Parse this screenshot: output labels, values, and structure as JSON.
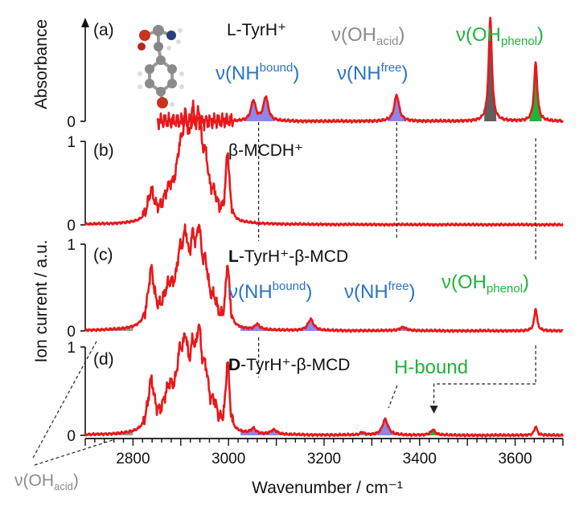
{
  "chart_data": {
    "type": "line",
    "xlabel": "Wavenumber / cm⁻¹",
    "ylabel_top": "Absorbance",
    "ylabel_bottom": "Ion current / a.u.",
    "xlim": [
      2700,
      3700
    ],
    "xticks": [
      2800,
      3000,
      3200,
      3400,
      3600
    ],
    "panels": [
      {
        "id": "a",
        "label": "(a)",
        "title": "L-TyrH⁺",
        "ylim": [
          0,
          1
        ],
        "yticks": [
          "0"
        ],
        "trace_x_range": [
          2850,
          3700
        ],
        "peaks": [
          {
            "x": 3052,
            "height": 0.2,
            "width": 6,
            "fill": "nh"
          },
          {
            "x": 3078,
            "height": 0.24,
            "width": 6,
            "fill": "nh"
          },
          {
            "x": 3352,
            "height": 0.26,
            "width": 6,
            "fill": "nh"
          },
          {
            "x": 3548,
            "height": 1.02,
            "width": 4,
            "fill": "acid"
          },
          {
            "x": 3643,
            "height": 0.58,
            "width": 4,
            "fill": "phenol"
          }
        ],
        "annotations": [
          {
            "base": "ν(NH",
            "sup": "bound",
            "close": ")",
            "color_key": "blue"
          },
          {
            "base": "ν(NH",
            "sup": "free",
            "close": ")",
            "color_key": "blue"
          },
          {
            "base": "ν(OH",
            "sub": "acid",
            "close": ")",
            "color_key": "gray"
          },
          {
            "base": "ν(OH",
            "sub": "phenol",
            "close": ")",
            "color_key": "green"
          }
        ]
      },
      {
        "id": "b",
        "label": "(b)",
        "title": "β-MCDH⁺",
        "ylim": [
          0,
          1
        ],
        "yticks": [
          "0",
          "1"
        ],
        "trace_x_range": [
          2700,
          3700
        ],
        "peaks": [
          {
            "x": 2838,
            "height": 0.33,
            "width": 8
          },
          {
            "x": 2875,
            "height": 0.3,
            "width": 15
          },
          {
            "x": 2898,
            "height": 0.58,
            "width": 10
          },
          {
            "x": 2910,
            "height": 0.82,
            "width": 7
          },
          {
            "x": 2925,
            "height": 0.9,
            "width": 7
          },
          {
            "x": 2938,
            "height": 0.93,
            "width": 7
          },
          {
            "x": 2952,
            "height": 0.55,
            "width": 8
          },
          {
            "x": 2970,
            "height": 0.22,
            "width": 8
          },
          {
            "x": 2998,
            "height": 0.82,
            "width": 4.5
          }
        ]
      },
      {
        "id": "c",
        "label": "(c)",
        "title_bold": "L",
        "title_rest": "-TyrH⁺-β-MCD",
        "ylim": [
          0,
          1
        ],
        "yticks": [
          "0",
          "1"
        ],
        "trace_x_range": [
          2700,
          3700
        ],
        "gray_fill": [
          2745,
          2800
        ],
        "blue_fill": [
          3025,
          3445
        ],
        "peaks": [
          {
            "x": 2838,
            "height": 0.62,
            "width": 8
          },
          {
            "x": 2875,
            "height": 0.4,
            "width": 15
          },
          {
            "x": 2898,
            "height": 0.58,
            "width": 9
          },
          {
            "x": 2910,
            "height": 0.7,
            "width": 7
          },
          {
            "x": 2925,
            "height": 0.68,
            "width": 7
          },
          {
            "x": 2938,
            "height": 0.84,
            "width": 7
          },
          {
            "x": 2952,
            "height": 0.52,
            "width": 8
          },
          {
            "x": 2970,
            "height": 0.22,
            "width": 8
          },
          {
            "x": 2998,
            "height": 0.72,
            "width": 4.5
          },
          {
            "x": 3060,
            "height": 0.06,
            "width": 6
          },
          {
            "x": 3172,
            "height": 0.13,
            "width": 7
          },
          {
            "x": 3365,
            "height": 0.04,
            "width": 9
          },
          {
            "x": 3643,
            "height": 0.26,
            "width": 3.5
          }
        ],
        "annotations": [
          {
            "base": "ν(NH",
            "sup": "bound",
            "close": ")",
            "color_key": "blue"
          },
          {
            "base": "ν(NH",
            "sup": "free",
            "close": ")",
            "color_key": "blue"
          },
          {
            "base": "ν(OH",
            "sub": "phenol",
            "close": ")",
            "color_key": "green"
          }
        ]
      },
      {
        "id": "d",
        "label": "(d)",
        "title_bold": "D",
        "title_rest": "-TyrH⁺-β-MCD",
        "ylim": [
          0,
          1
        ],
        "yticks": [
          "0",
          "1"
        ],
        "trace_x_range": [
          2700,
          3700
        ],
        "gray_fill": [
          2760,
          2800
        ],
        "blue_fill": [
          3025,
          3400
        ],
        "green_fill": [
          3405,
          3445
        ],
        "peaks": [
          {
            "x": 2838,
            "height": 0.54,
            "width": 8
          },
          {
            "x": 2875,
            "height": 0.42,
            "width": 15
          },
          {
            "x": 2898,
            "height": 0.6,
            "width": 9
          },
          {
            "x": 2910,
            "height": 0.68,
            "width": 7
          },
          {
            "x": 2925,
            "height": 0.62,
            "width": 7
          },
          {
            "x": 2938,
            "height": 0.88,
            "width": 7
          },
          {
            "x": 2952,
            "height": 0.5,
            "width": 8
          },
          {
            "x": 2970,
            "height": 0.22,
            "width": 8
          },
          {
            "x": 2998,
            "height": 0.78,
            "width": 4.5
          },
          {
            "x": 3052,
            "height": 0.06,
            "width": 6
          },
          {
            "x": 3095,
            "height": 0.05,
            "width": 8
          },
          {
            "x": 3280,
            "height": 0.03,
            "width": 5
          },
          {
            "x": 3328,
            "height": 0.18,
            "width": 7
          },
          {
            "x": 3428,
            "height": 0.06,
            "width": 6
          },
          {
            "x": 3643,
            "height": 0.1,
            "width": 3.5
          }
        ],
        "annotations": [
          {
            "text": "H-bound",
            "color_key": "green"
          }
        ]
      }
    ],
    "dashed_guides_x": [
      3063,
      3352,
      3643
    ],
    "extra_label": {
      "base": "ν(OH",
      "sub": "acid",
      "close": ")"
    }
  },
  "colors": {
    "trace": "#e8181b",
    "blue": "#2a73c8",
    "nh_fill": "#8f86e6",
    "gray": "#8c8c8c",
    "green": "#1fb43a",
    "acid_fill": "#5f5f5f",
    "axis": "#111111"
  },
  "molecule_icon": "tyrosine-ball-and-stick-model-icon"
}
